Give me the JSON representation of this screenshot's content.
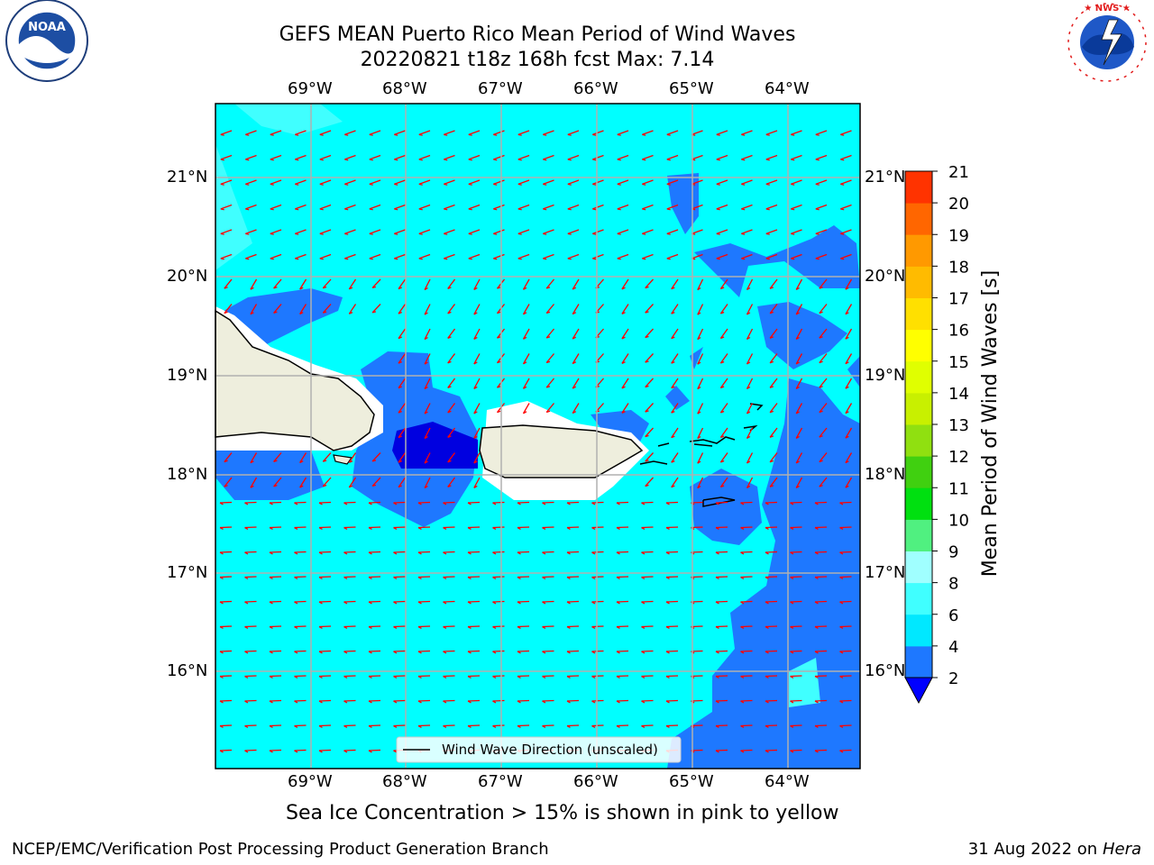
{
  "title": {
    "line1": "GEFS MEAN Puerto Rico Mean Period of Wind Waves",
    "line2": "20220821 t18z 168h fcst   Max: 7.14"
  },
  "map": {
    "lon_labels": [
      "69°W",
      "68°W",
      "67°W",
      "66°W",
      "65°W",
      "64°W"
    ],
    "lat_labels": [
      "21°N",
      "20°N",
      "19°N",
      "18°N",
      "17°N",
      "16°N"
    ],
    "lon_range": [
      -70.0,
      -63.25
    ],
    "lat_range": [
      15.0,
      21.75
    ],
    "ocean_color": "#00ffff",
    "low_period_color": "#1e78ff",
    "lowest_period_color": "#0000e0",
    "land_color": "#eeeedd",
    "arrow_color": "#ff0000",
    "grid_color": "#b0b0b0"
  },
  "legend": {
    "label": "Wind Wave Direction (unscaled)"
  },
  "colorbar": {
    "label": "Mean Period of Wind Waves [s]",
    "ticks": [
      "2",
      "4",
      "6",
      "8",
      "9",
      "10",
      "11",
      "12",
      "13",
      "14",
      "15",
      "16",
      "17",
      "18",
      "19",
      "20",
      "21"
    ],
    "colors": [
      "#1e78ff",
      "#00e8ff",
      "#40ffff",
      "#a0ffff",
      "#50f080",
      "#00e010",
      "#40d010",
      "#90e010",
      "#c8f000",
      "#e0ff00",
      "#ffff00",
      "#ffe000",
      "#ffbb00",
      "#ff9900",
      "#ff6600",
      "#ff3300",
      "#ff0000"
    ],
    "extend_color": "#0000ff"
  },
  "caption": "Sea Ice Concentration > 15% is shown in pink to yellow",
  "footer": {
    "left": "NCEP/EMC/Verification Post Processing Product Generation Branch",
    "right_prefix": "31 Aug 2022 on",
    "right_machine": "Hera"
  },
  "logos": {
    "left": "NOAA",
    "right": "NATIONAL WEATHER SERVICE"
  }
}
